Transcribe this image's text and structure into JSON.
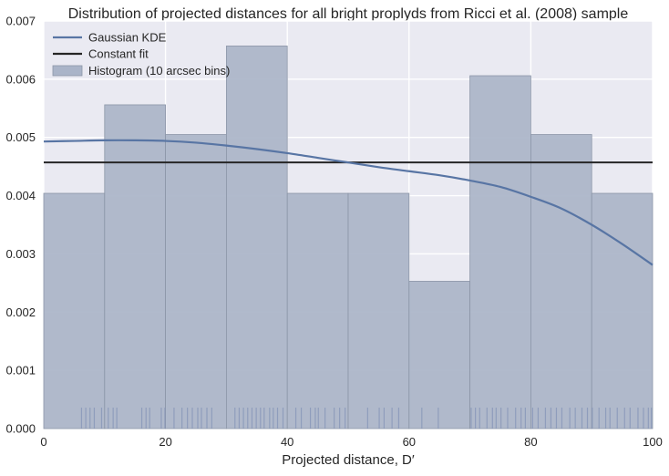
{
  "chart_data": {
    "type": "bar",
    "title": "Distribution of projected distances for all bright proplyds from Ricci et al. (2008) sample",
    "xlabel": "Projected distance, D′",
    "ylabel": "",
    "xlim": [
      0,
      100
    ],
    "ylim": [
      0,
      0.007
    ],
    "x_ticks": [
      0,
      20,
      40,
      60,
      80,
      100
    ],
    "y_ticks": [
      "0.000",
      "0.001",
      "0.002",
      "0.003",
      "0.004",
      "0.005",
      "0.006",
      "0.007"
    ],
    "grid": true,
    "legend_position": "top-left",
    "colors": {
      "background": "#eaeaf2",
      "grid": "#ffffff",
      "histogram": "#aab4c8",
      "histogram_edge": "#8c96a8",
      "kde": "#5875a4",
      "constant": "#262626",
      "rug": "#8796b8"
    },
    "histogram": {
      "name": "Histogram (10 arcsec bins)",
      "bin_edges": [
        0,
        10,
        20,
        30,
        40,
        50,
        60,
        70,
        80,
        90,
        100
      ],
      "values": [
        0.00404,
        0.00556,
        0.00505,
        0.00657,
        0.00404,
        0.00404,
        0.00253,
        0.00606,
        0.00505,
        0.00404
      ]
    },
    "kde": {
      "name": "Gaussian KDE",
      "x": [
        0,
        5,
        10,
        15,
        20,
        25,
        30,
        35,
        40,
        45,
        50,
        55,
        60,
        65,
        70,
        75,
        80,
        85,
        90,
        95,
        100
      ],
      "y": [
        0.00493,
        0.00494,
        0.00495,
        0.00495,
        0.00494,
        0.00491,
        0.00486,
        0.0048,
        0.00473,
        0.00465,
        0.00457,
        0.00449,
        0.00442,
        0.00435,
        0.00426,
        0.00415,
        0.00398,
        0.00378,
        0.0035,
        0.00317,
        0.00281
      ]
    },
    "constant": {
      "name": "Constant fit",
      "value": 0.00457
    },
    "rug": [
      6.2,
      6.9,
      7.6,
      8.3,
      9.5,
      10.6,
      11.4,
      12.0,
      16.1,
      16.8,
      17.4,
      19.3,
      19.9,
      21.4,
      22.7,
      23.6,
      24.4,
      25.3,
      25.9,
      26.8,
      27.6,
      31.4,
      32.1,
      32.8,
      33.5,
      34.2,
      34.9,
      35.6,
      36.2,
      37.1,
      37.7,
      38.4,
      39.3,
      41.4,
      42.3,
      43.8,
      44.6,
      45.1,
      46.2,
      47.7,
      48.6,
      49.5,
      53.2,
      55.1,
      55.9,
      57.2,
      58.3,
      62.1,
      64.8,
      70.2,
      70.9,
      71.6,
      72.8,
      73.7,
      74.3,
      75.1,
      76.2,
      77.5,
      78.4,
      79.1,
      80.3,
      81.2,
      82.4,
      83.3,
      84.2,
      85.1,
      86.4,
      87.3,
      88.4,
      89.3,
      90.1,
      91.2,
      92.3,
      93.0,
      94.2,
      95.4,
      96.3,
      97.6,
      98.5,
      99.3,
      99.8
    ]
  }
}
